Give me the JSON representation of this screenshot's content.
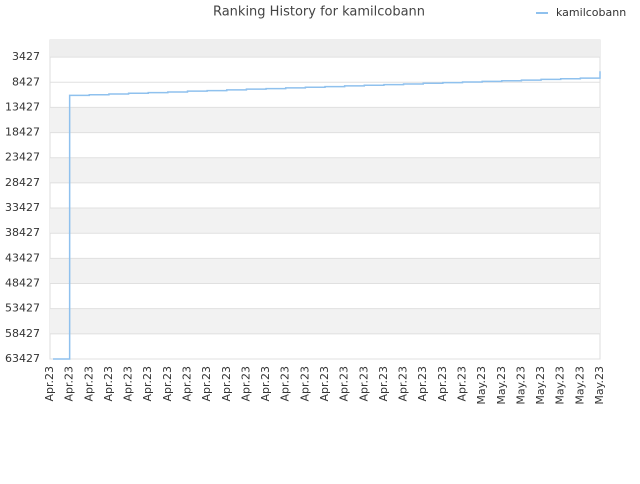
{
  "chart_data": {
    "type": "line",
    "title": "Ranking History for kamilcobann",
    "categories": [
      "Apr.23",
      "Apr.23",
      "Apr.23",
      "Apr.23",
      "Apr.23",
      "Apr.23",
      "Apr.23",
      "Apr.23",
      "Apr.23",
      "Apr.23",
      "Apr.23",
      "Apr.23",
      "Apr.23",
      "Apr.23",
      "Apr.23",
      "Apr.23",
      "Apr.23",
      "Apr.23",
      "Apr.23",
      "Apr.23",
      "Apr.23",
      "Apr.23",
      "May.23",
      "May.23",
      "May.23",
      "May.23",
      "May.23",
      "May.23",
      "May.23"
    ],
    "series": [
      {
        "name": "kamilcobann",
        "color": "#8fc1ee",
        "values": [
          63427,
          11027,
          10900,
          10750,
          10600,
          10480,
          10350,
          10200,
          10080,
          9950,
          9800,
          9680,
          9550,
          9420,
          9300,
          9150,
          9020,
          8900,
          8760,
          8630,
          8500,
          8370,
          8250,
          8120,
          8000,
          7860,
          7730,
          7600,
          6227
        ]
      }
    ],
    "ylim": [
      63427,
      27
    ],
    "yticks": [
      3427,
      8427,
      13427,
      18427,
      23427,
      28427,
      33427,
      38427,
      43427,
      48427,
      53427,
      58427,
      63427
    ],
    "grid": true,
    "legend": "top-right"
  }
}
